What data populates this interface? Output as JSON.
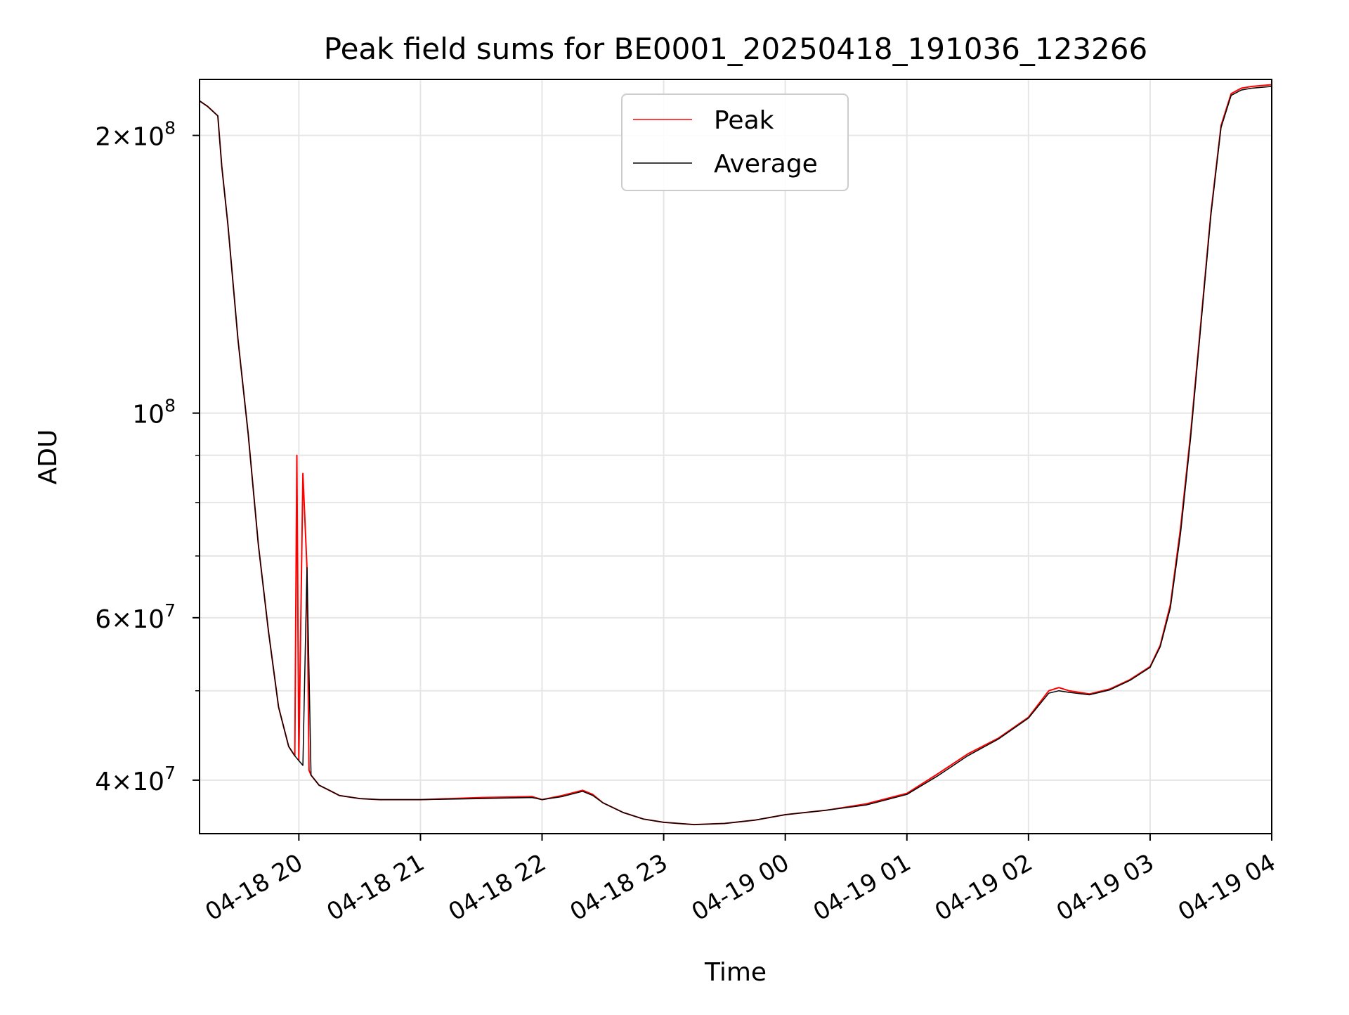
{
  "chart_data": {
    "type": "line",
    "title": "Peak field sums for BE0001_20250418_191036_123266",
    "xlabel": "Time",
    "ylabel": "ADU",
    "yscale": "log",
    "xlim": [
      "2025-04-18 19:11",
      "2025-04-19 04:00"
    ],
    "ylim": [
      35000000,
      230000000
    ],
    "grid": true,
    "legend_position": "top-center",
    "x_ticks": [
      {
        "value": "2025-04-18 20:00",
        "label": "04-18 20"
      },
      {
        "value": "2025-04-18 21:00",
        "label": "04-18 21"
      },
      {
        "value": "2025-04-18 22:00",
        "label": "04-18 22"
      },
      {
        "value": "2025-04-18 23:00",
        "label": "04-18 23"
      },
      {
        "value": "2025-04-19 00:00",
        "label": "04-19 00"
      },
      {
        "value": "2025-04-19 01:00",
        "label": "04-19 01"
      },
      {
        "value": "2025-04-19 02:00",
        "label": "04-19 02"
      },
      {
        "value": "2025-04-19 03:00",
        "label": "04-19 03"
      },
      {
        "value": "2025-04-19 04:00",
        "label": "04-19 04"
      }
    ],
    "y_ticks": [
      {
        "value": 40000000,
        "mantissa": "4",
        "exp": "7"
      },
      {
        "value": 60000000,
        "mantissa": "6",
        "exp": "7"
      },
      {
        "value": 100000000,
        "mantissa": "",
        "exp": "8"
      },
      {
        "value": 200000000,
        "mantissa": "2",
        "exp": "8"
      }
    ],
    "y_minor_ticks": [
      50000000,
      70000000,
      80000000,
      90000000
    ],
    "series": [
      {
        "name": "Peak",
        "color": "#ff0000",
        "x": [
          "2025-04-18 19:11",
          "2025-04-18 19:15",
          "2025-04-18 19:20",
          "2025-04-18 19:22",
          "2025-04-18 19:25",
          "2025-04-18 19:30",
          "2025-04-18 19:35",
          "2025-04-18 19:40",
          "2025-04-18 19:45",
          "2025-04-18 19:50",
          "2025-04-18 19:55",
          "2025-04-18 19:58",
          "2025-04-18 19:59",
          "2025-04-18 20:00",
          "2025-04-18 20:02",
          "2025-04-18 20:04",
          "2025-04-18 20:05",
          "2025-04-18 20:06",
          "2025-04-18 20:08",
          "2025-04-18 20:10",
          "2025-04-18 20:15",
          "2025-04-18 20:20",
          "2025-04-18 20:30",
          "2025-04-18 20:40",
          "2025-04-18 21:00",
          "2025-04-18 21:30",
          "2025-04-18 21:55",
          "2025-04-18 22:00",
          "2025-04-18 22:10",
          "2025-04-18 22:20",
          "2025-04-18 22:25",
          "2025-04-18 22:30",
          "2025-04-18 22:40",
          "2025-04-18 22:50",
          "2025-04-18 23:00",
          "2025-04-18 23:15",
          "2025-04-18 23:30",
          "2025-04-18 23:45",
          "2025-04-19 00:00",
          "2025-04-19 00:20",
          "2025-04-19 00:40",
          "2025-04-19 01:00",
          "2025-04-19 01:15",
          "2025-04-19 01:30",
          "2025-04-19 01:45",
          "2025-04-19 02:00",
          "2025-04-19 02:10",
          "2025-04-19 02:15",
          "2025-04-19 02:20",
          "2025-04-19 02:30",
          "2025-04-19 02:40",
          "2025-04-19 02:50",
          "2025-04-19 03:00",
          "2025-04-19 03:05",
          "2025-04-19 03:10",
          "2025-04-19 03:15",
          "2025-04-19 03:20",
          "2025-04-19 03:25",
          "2025-04-19 03:30",
          "2025-04-19 03:35",
          "2025-04-19 03:40",
          "2025-04-19 03:45",
          "2025-04-19 03:50",
          "2025-04-19 04:00"
        ],
        "y": [
          218000000,
          215000000,
          210000000,
          185000000,
          160000000,
          120000000,
          95000000,
          72000000,
          58000000,
          48000000,
          43500000,
          42500000,
          90000000,
          42000000,
          86000000,
          68000000,
          41000000,
          40500000,
          40000000,
          39500000,
          39000000,
          38500000,
          38200000,
          38100000,
          38100000,
          38300000,
          38400000,
          38100000,
          38500000,
          39000000,
          38600000,
          37800000,
          36900000,
          36300000,
          36000000,
          35800000,
          35900000,
          36200000,
          36700000,
          37100000,
          37700000,
          38700000,
          40600000,
          42700000,
          44400000,
          46800000,
          50000000,
          50400000,
          50000000,
          49600000,
          50200000,
          51400000,
          53100000,
          56000000,
          62000000,
          75000000,
          95000000,
          125000000,
          165000000,
          205000000,
          222000000,
          225000000,
          226000000,
          227000000
        ]
      },
      {
        "name": "Average",
        "color": "#000000",
        "x": [
          "2025-04-18 19:11",
          "2025-04-18 19:15",
          "2025-04-18 19:20",
          "2025-04-18 19:22",
          "2025-04-18 19:25",
          "2025-04-18 19:30",
          "2025-04-18 19:35",
          "2025-04-18 19:40",
          "2025-04-18 19:45",
          "2025-04-18 19:50",
          "2025-04-18 19:55",
          "2025-04-18 19:58",
          "2025-04-18 20:00",
          "2025-04-18 20:02",
          "2025-04-18 20:04",
          "2025-04-18 20:06",
          "2025-04-18 20:08",
          "2025-04-18 20:10",
          "2025-04-18 20:15",
          "2025-04-18 20:20",
          "2025-04-18 20:30",
          "2025-04-18 20:40",
          "2025-04-18 21:00",
          "2025-04-18 21:30",
          "2025-04-18 21:55",
          "2025-04-18 22:00",
          "2025-04-18 22:10",
          "2025-04-18 22:20",
          "2025-04-18 22:25",
          "2025-04-18 22:30",
          "2025-04-18 22:40",
          "2025-04-18 22:50",
          "2025-04-18 23:00",
          "2025-04-18 23:15",
          "2025-04-18 23:30",
          "2025-04-18 23:45",
          "2025-04-19 00:00",
          "2025-04-19 00:20",
          "2025-04-19 00:40",
          "2025-04-19 01:00",
          "2025-04-19 01:15",
          "2025-04-19 01:30",
          "2025-04-19 01:45",
          "2025-04-19 02:00",
          "2025-04-19 02:10",
          "2025-04-19 02:15",
          "2025-04-19 02:20",
          "2025-04-19 02:30",
          "2025-04-19 02:40",
          "2025-04-19 02:50",
          "2025-04-19 03:00",
          "2025-04-19 03:05",
          "2025-04-19 03:10",
          "2025-04-19 03:15",
          "2025-04-19 03:20",
          "2025-04-19 03:25",
          "2025-04-19 03:30",
          "2025-04-19 03:35",
          "2025-04-19 03:40",
          "2025-04-19 03:45",
          "2025-04-19 03:50",
          "2025-04-19 04:00"
        ],
        "y": [
          218000000,
          215000000,
          210000000,
          185000000,
          160000000,
          120000000,
          95000000,
          72000000,
          58000000,
          48000000,
          43500000,
          42500000,
          42000000,
          41500000,
          68000000,
          40500000,
          40000000,
          39500000,
          39000000,
          38500000,
          38200000,
          38100000,
          38100000,
          38200000,
          38300000,
          38100000,
          38400000,
          38900000,
          38500000,
          37800000,
          36900000,
          36300000,
          36000000,
          35800000,
          35900000,
          36200000,
          36700000,
          37100000,
          37600000,
          38600000,
          40400000,
          42500000,
          44300000,
          46700000,
          49700000,
          50000000,
          49800000,
          49500000,
          50100000,
          51300000,
          53000000,
          55800000,
          61500000,
          74000000,
          94000000,
          124000000,
          164000000,
          204000000,
          221000000,
          224000000,
          225000000,
          226000000
        ]
      }
    ]
  }
}
